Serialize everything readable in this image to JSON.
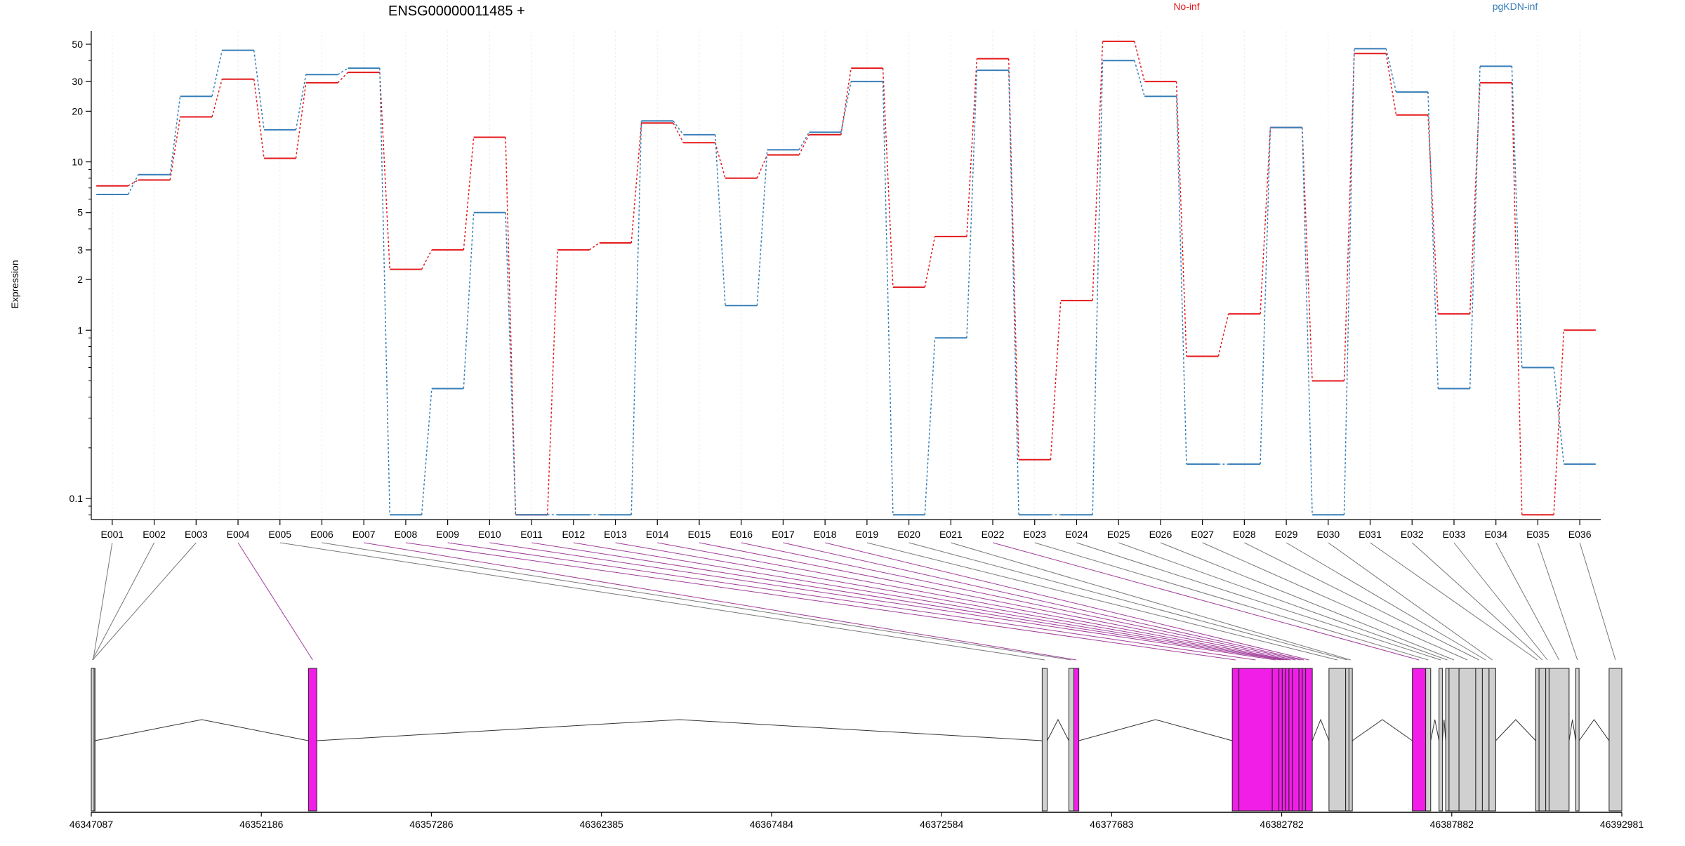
{
  "chart_data": {
    "type": "line",
    "title": "ENSG00000011485 +",
    "ylabel": "Expression",
    "yscale": "log",
    "ylim": [
      0.075,
      60
    ],
    "yticks": [
      0.1,
      1,
      2,
      3,
      5,
      10,
      20,
      30,
      50
    ],
    "ytick_labels": [
      "0.1",
      "1",
      "2",
      "3",
      "5",
      "10",
      "20",
      "30",
      "50"
    ],
    "categories": [
      "E001",
      "E002",
      "E003",
      "E004",
      "E005",
      "E006",
      "E007",
      "E008",
      "E009",
      "E010",
      "E011",
      "E012",
      "E013",
      "E014",
      "E015",
      "E016",
      "E017",
      "E018",
      "E019",
      "E020",
      "E021",
      "E022",
      "E023",
      "E024",
      "E025",
      "E026",
      "E027",
      "E028",
      "E029",
      "E030",
      "E031",
      "E032",
      "E033",
      "E034",
      "E035",
      "E036"
    ],
    "grid": "vertical",
    "legend": "top",
    "series": [
      {
        "name": "No-inf",
        "color": "#e41a1c",
        "values": [
          7.2,
          7.8,
          18.5,
          31,
          10.5,
          29.5,
          34,
          2.3,
          3.0,
          14,
          0.08,
          3.0,
          3.3,
          17,
          13,
          8.0,
          11,
          14.5,
          36,
          1.8,
          3.6,
          41,
          0.17,
          1.5,
          52,
          30,
          0.7,
          1.25,
          16,
          0.5,
          44,
          19,
          1.25,
          29.5,
          0.08,
          1.0
        ]
      },
      {
        "name": "pgKDN-inf",
        "color": "#377eb8",
        "values": [
          6.4,
          8.4,
          24.5,
          46,
          15.5,
          33,
          36,
          0.08,
          0.45,
          5.0,
          0.08,
          0.08,
          0.08,
          17.5,
          14.5,
          1.4,
          11.8,
          15,
          30,
          0.08,
          0.9,
          35,
          0.08,
          0.08,
          40,
          24.5,
          0.16,
          0.16,
          16,
          0.08,
          47,
          26,
          0.45,
          37,
          0.6,
          0.16
        ]
      }
    ],
    "gene_model": {
      "axis_ticks": [
        "46347087",
        "46352186",
        "46357286",
        "46362385",
        "46367484",
        "46372584",
        "46377683",
        "46382782",
        "46387882",
        "46392981"
      ],
      "axis_range": [
        46347087,
        46392981
      ],
      "exons": [
        {
          "id": "E001",
          "start": 46347087,
          "end": 46347200,
          "highlight": false
        },
        {
          "id": "E002",
          "start": 46347087,
          "end": 46347150,
          "highlight": false
        },
        {
          "id": "E003",
          "start": 46347087,
          "end": 46347170,
          "highlight": false
        },
        {
          "id": "E004",
          "start": 46353600,
          "end": 46353850,
          "highlight": true
        },
        {
          "id": "E005",
          "start": 46375600,
          "end": 46375750,
          "highlight": false
        },
        {
          "id": "E006",
          "start": 46376400,
          "end": 46376550,
          "highlight": false
        },
        {
          "id": "E007",
          "start": 46376550,
          "end": 46376700,
          "highlight": true
        },
        {
          "id": "E008",
          "start": 46381300,
          "end": 46381500,
          "highlight": true
        },
        {
          "id": "E009",
          "start": 46381500,
          "end": 46382500,
          "highlight": true
        },
        {
          "id": "E010",
          "start": 46382500,
          "end": 46382700,
          "highlight": true
        },
        {
          "id": "E011",
          "start": 46382700,
          "end": 46382800,
          "highlight": true
        },
        {
          "id": "E012",
          "start": 46382800,
          "end": 46382900,
          "highlight": true
        },
        {
          "id": "E013",
          "start": 46382900,
          "end": 46383000,
          "highlight": true
        },
        {
          "id": "E014",
          "start": 46383000,
          "end": 46383100,
          "highlight": true
        },
        {
          "id": "E015",
          "start": 46383100,
          "end": 46383300,
          "highlight": true
        },
        {
          "id": "E016",
          "start": 46383300,
          "end": 46383400,
          "highlight": true
        },
        {
          "id": "E017",
          "start": 46383400,
          "end": 46383500,
          "highlight": true
        },
        {
          "id": "E018",
          "start": 46383500,
          "end": 46383700,
          "highlight": true
        },
        {
          "id": "E019",
          "start": 46384200,
          "end": 46384700,
          "highlight": false
        },
        {
          "id": "E020",
          "start": 46384700,
          "end": 46384800,
          "highlight": false
        },
        {
          "id": "E021",
          "start": 46384800,
          "end": 46384900,
          "highlight": false
        },
        {
          "id": "E022",
          "start": 46386700,
          "end": 46387100,
          "highlight": true
        },
        {
          "id": "E023",
          "start": 46387100,
          "end": 46387250,
          "highlight": false
        },
        {
          "id": "E024",
          "start": 46387500,
          "end": 46387600,
          "highlight": false
        },
        {
          "id": "E025",
          "start": 46387700,
          "end": 46387800,
          "highlight": false
        },
        {
          "id": "E026",
          "start": 46387800,
          "end": 46388100,
          "highlight": false
        },
        {
          "id": "E027",
          "start": 46388100,
          "end": 46388600,
          "highlight": false
        },
        {
          "id": "E028",
          "start": 46388600,
          "end": 46388800,
          "highlight": false
        },
        {
          "id": "E029",
          "start": 46388800,
          "end": 46389000,
          "highlight": false
        },
        {
          "id": "E030",
          "start": 46389000,
          "end": 46389200,
          "highlight": false
        },
        {
          "id": "E031",
          "start": 46390400,
          "end": 46390500,
          "highlight": false
        },
        {
          "id": "E032",
          "start": 46390500,
          "end": 46390700,
          "highlight": false
        },
        {
          "id": "E033",
          "start": 46390700,
          "end": 46390800,
          "highlight": false
        },
        {
          "id": "E034",
          "start": 46390800,
          "end": 46391400,
          "highlight": false
        },
        {
          "id": "E035",
          "start": 46391600,
          "end": 46391700,
          "highlight": false
        },
        {
          "id": "E036",
          "start": 46392600,
          "end": 46392981,
          "highlight": false
        }
      ],
      "introns": [
        [
          46347200,
          46353600
        ],
        [
          46353850,
          46375600
        ],
        [
          46375750,
          46376400
        ],
        [
          46376700,
          46381300
        ],
        [
          46383700,
          46384200
        ],
        [
          46384900,
          46386700
        ],
        [
          46387250,
          46387500
        ],
        [
          46387600,
          46387700
        ],
        [
          46389200,
          46390400
        ],
        [
          46391400,
          46391600
        ],
        [
          46391700,
          46392600
        ]
      ]
    }
  }
}
